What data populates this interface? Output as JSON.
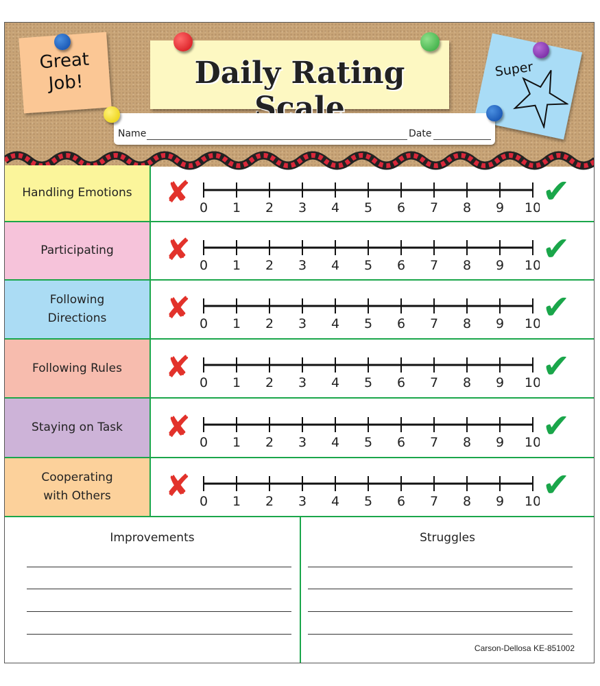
{
  "header": {
    "title": "Daily Rating Scale",
    "great_job": "Great\nJob!",
    "super": "Super",
    "name_label": "Name",
    "date_label": "Date"
  },
  "scale": {
    "min": 0,
    "max": 10,
    "ticks": [
      "0",
      "1",
      "2",
      "3",
      "4",
      "5",
      "6",
      "7",
      "8",
      "9",
      "10"
    ]
  },
  "icons": {
    "low": "red-x-icon",
    "high": "green-check-icon"
  },
  "rows": [
    {
      "label": "Handling Emotions",
      "color": "#fbf59b"
    },
    {
      "label": "Participating",
      "color": "#f6c3da"
    },
    {
      "label": "Following\nDirections",
      "color": "#abdcf4"
    },
    {
      "label": "Following Rules",
      "color": "#f7bcae"
    },
    {
      "label": "Staying on Task",
      "color": "#cdb3d8"
    },
    {
      "label": "Cooperating\nwith Others",
      "color": "#fcd19b"
    }
  ],
  "bottom": {
    "improvements": "Improvements",
    "struggles": "Struggles",
    "credit": "Carson-Dellosa KE-851002"
  },
  "colors": {
    "border": "#1aa64a",
    "cork": "#c8a477"
  }
}
